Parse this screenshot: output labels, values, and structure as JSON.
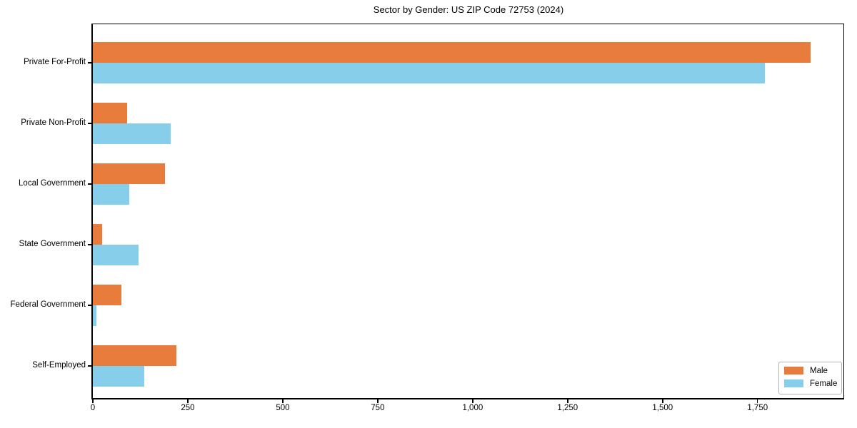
{
  "chart_data": {
    "type": "bar",
    "orientation": "horizontal",
    "title": "Sector by Gender: US ZIP Code 72753 (2024)",
    "categories": [
      "Private For-Profit",
      "Private Non-Profit",
      "Local Government",
      "State Government",
      "Federal Government",
      "Self-Employed"
    ],
    "series": [
      {
        "name": "Male",
        "color": "#e87c3c",
        "values": [
          1890,
          90,
          190,
          25,
          75,
          220
        ]
      },
      {
        "name": "Female",
        "color": "#87ceeb",
        "values": [
          1770,
          205,
          95,
          120,
          10,
          135
        ]
      }
    ],
    "xlabel": "",
    "ylabel": "",
    "xlim": [
      0,
      1978
    ],
    "xticks": [
      0,
      250,
      500,
      750,
      1000,
      1250,
      1500,
      1750
    ],
    "xtick_labels": [
      "0",
      "250",
      "500",
      "750",
      "1,000",
      "1,250",
      "1,500",
      "1,750"
    ],
    "grid": false,
    "legend": {
      "position": "lower right",
      "entries": [
        "Male",
        "Female"
      ]
    },
    "colors": {
      "axis": "#000000",
      "background": "#ffffff",
      "male": "#e87c3c",
      "female": "#87ceeb"
    }
  }
}
